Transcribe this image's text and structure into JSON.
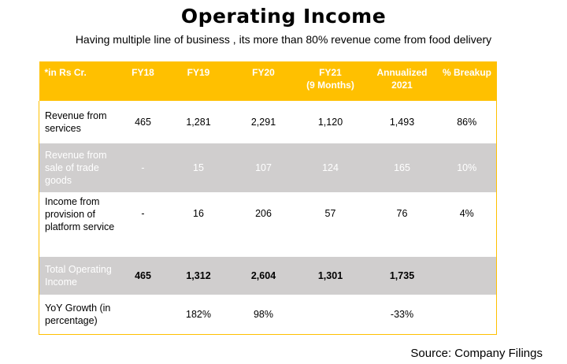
{
  "title": "Operating Income",
  "subtitle": "Having multiple line of business , its  more than 80% revenue come from food delivery",
  "table": {
    "headers": [
      "*in Rs Cr.",
      "FY18",
      "FY19",
      "FY20",
      "FY21\n(9 Months)",
      "Annualized\n2021",
      "% Breakup"
    ],
    "rows": [
      {
        "label": "Revenue from services",
        "cells": [
          "465",
          "1,281",
          "2,291",
          "1,120",
          "1,493",
          "86%"
        ]
      },
      {
        "label": "Revenue from sale of trade goods",
        "cells": [
          "-",
          "15",
          "107",
          "124",
          "165",
          "10%"
        ]
      },
      {
        "label": "Income from provision of platform service",
        "cells": [
          "-",
          "16",
          "206",
          "57",
          "76",
          "4%"
        ]
      },
      {
        "label": "Total Operating Income",
        "cells": [
          "465",
          "1,312",
          "2,604",
          "1,301",
          "1,735",
          ""
        ]
      },
      {
        "label": "YoY Growth (in percentage)",
        "cells": [
          "",
          "182%",
          "98%",
          "",
          "-33%",
          ""
        ]
      }
    ]
  },
  "colors": {
    "header": "#ffc000",
    "grey_row": "#d0cece"
  },
  "source": "Source: Company Filings"
}
